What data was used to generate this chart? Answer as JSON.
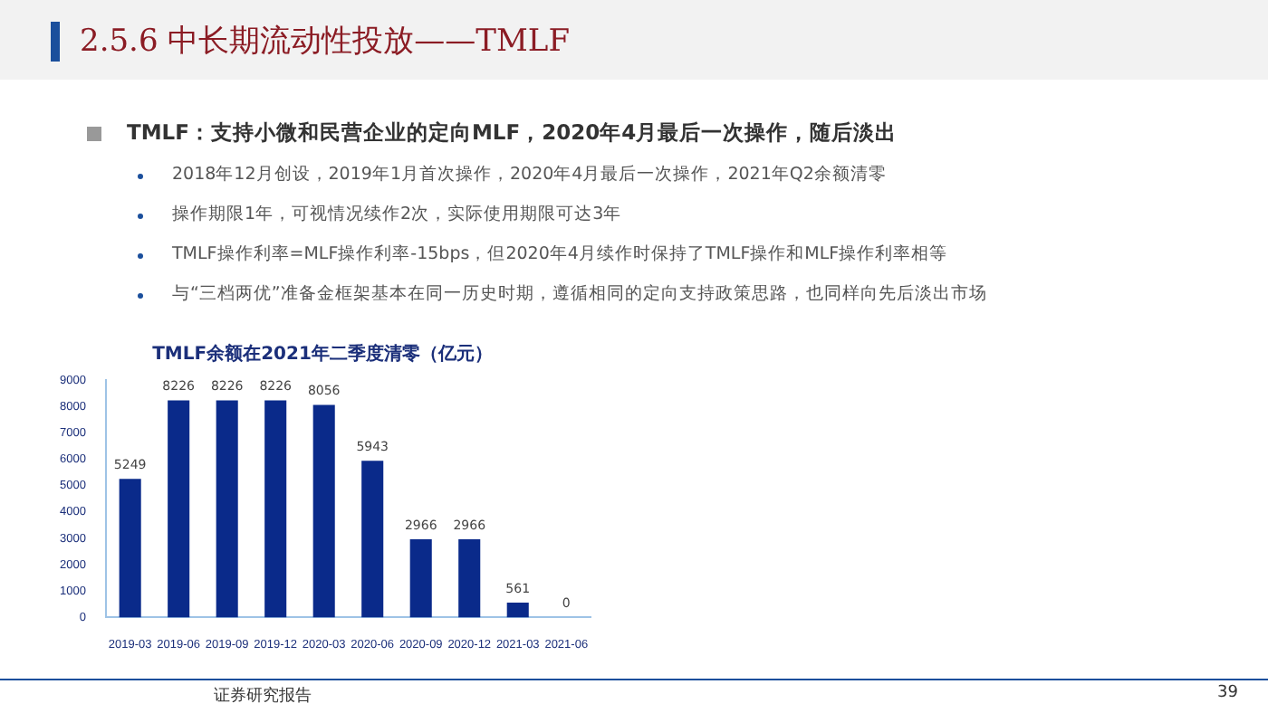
{
  "chart_data": {
    "type": "bar",
    "title": "TMLF余额在2021年二季度清零（亿元）",
    "categories": [
      "2019-03",
      "2019-06",
      "2019-09",
      "2019-12",
      "2020-03",
      "2020-06",
      "2020-09",
      "2020-12",
      "2021-03",
      "2021-06"
    ],
    "values": [
      5249,
      8226,
      8226,
      8226,
      8056,
      5943,
      2966,
      2966,
      561,
      0
    ],
    "color": "#0a2a8a",
    "data_labels": true,
    "grid": false,
    "legend": false,
    "ylim": [
      0,
      9000
    ],
    "yticks": [
      0,
      1000,
      2000,
      3000,
      4000,
      5000,
      6000,
      7000,
      8000,
      9000
    ],
    "annotations": [
      "2.5.6 中长期流动性投放——TMLF",
      "TMLF：支持小微和民营企业的定向MLF，2020年4月最后一次操作，随后淡出",
      "2018年12月创设，2019年1月首次操作，2020年4月最后一次操作，2021年Q2余额清零",
      "操作期限1年，可视情况续作2次，实际使用期限可达3年",
      "TMLF操作利率=MLF操作利率-15bps，但2020年4月续作时保持了TMLF操作和MLF操作利率相等",
      "与“三档两优”准备金框架基本在同一历史时期，遵循相同的定向支持政策思路，也同样向先后淡出市场",
      "证券研究报告",
      "39"
    ]
  }
}
